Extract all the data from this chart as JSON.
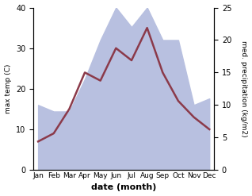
{
  "months": [
    "Jan",
    "Feb",
    "Mar",
    "Apr",
    "May",
    "Jun",
    "Jul",
    "Aug",
    "Sep",
    "Oct",
    "Nov",
    "Dec"
  ],
  "max_temp": [
    7,
    9,
    15,
    24,
    22,
    30,
    27,
    35,
    24,
    17,
    13,
    10
  ],
  "precipitation": [
    10,
    9,
    9,
    14,
    20,
    25,
    22,
    25,
    20,
    20,
    10,
    11
  ],
  "temp_color": "#8B3A4A",
  "precip_fill_color": "#b8c0e0",
  "temp_ylim": [
    0,
    40
  ],
  "precip_ylim": [
    0,
    25
  ],
  "xlabel": "date (month)",
  "ylabel_left": "max temp (C)",
  "ylabel_right": "med. precipitation (kg/m2)",
  "temp_yticks": [
    0,
    10,
    20,
    30,
    40
  ],
  "precip_yticks": [
    0,
    5,
    10,
    15,
    20,
    25
  ],
  "figsize": [
    3.18,
    2.47
  ],
  "dpi": 100
}
